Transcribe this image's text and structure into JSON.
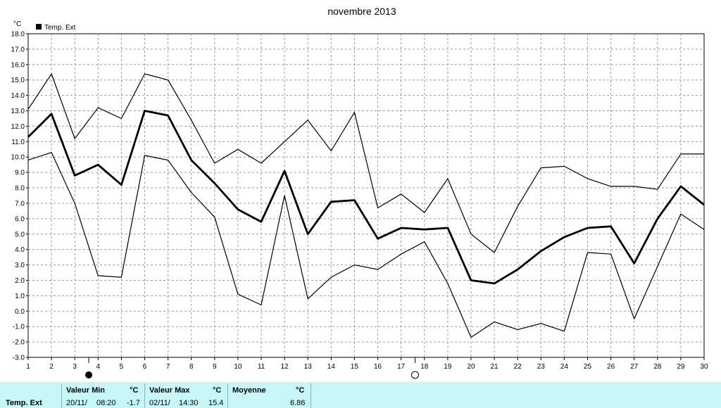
{
  "chart_data": {
    "type": "line",
    "title": "novembre 2013",
    "ylabel": "°C",
    "legend": {
      "label": "Temp. Ext",
      "position": "top-left",
      "color": "#000000"
    },
    "x": [
      1,
      2,
      3,
      4,
      5,
      6,
      7,
      8,
      9,
      10,
      11,
      12,
      13,
      14,
      15,
      16,
      17,
      18,
      19,
      20,
      21,
      22,
      23,
      24,
      25,
      26,
      27,
      28,
      29,
      30
    ],
    "xlim": [
      1,
      30
    ],
    "ylim": [
      -3.0,
      18.0
    ],
    "yticks": [
      "18.0",
      "17.0",
      "16.0",
      "15.0",
      "14.0",
      "13.0",
      "12.0",
      "11.0",
      "10.0",
      "9.0",
      "8.0",
      "7.0",
      "6.0",
      "5.0",
      "4.0",
      "3.0",
      "2.0",
      "1.0",
      "0.0",
      "-1.0",
      "-2.0",
      "-3.0"
    ],
    "grid": true,
    "series": [
      {
        "key": "max",
        "stroke_width": 1.2,
        "values": [
          13.1,
          15.4,
          11.2,
          13.2,
          12.5,
          15.4,
          15.0,
          12.4,
          9.6,
          10.5,
          9.6,
          11.0,
          12.4,
          10.4,
          12.9,
          6.7,
          7.6,
          6.4,
          8.6,
          5.0,
          3.8,
          6.8,
          9.3,
          9.4,
          8.6,
          8.1,
          8.1,
          7.9,
          10.2,
          10.2
        ]
      },
      {
        "key": "mean",
        "stroke_width": 2.8,
        "values": [
          11.3,
          12.8,
          8.8,
          9.5,
          8.2,
          13.0,
          12.7,
          9.8,
          8.3,
          6.6,
          5.8,
          9.1,
          5.0,
          7.1,
          7.2,
          4.7,
          5.4,
          5.3,
          5.4,
          2.0,
          1.8,
          2.7,
          3.9,
          4.8,
          5.4,
          5.5,
          3.1,
          6.0,
          8.1,
          6.9
        ]
      },
      {
        "key": "min",
        "stroke_width": 1.2,
        "values": [
          9.8,
          10.3,
          7.0,
          2.3,
          2.2,
          10.1,
          9.8,
          7.7,
          6.1,
          1.1,
          0.4,
          7.5,
          0.8,
          2.2,
          3.0,
          2.7,
          3.7,
          4.5,
          1.8,
          -1.7,
          -0.7,
          -1.2,
          -0.8,
          -1.3,
          3.8,
          3.7,
          -0.5,
          2.9,
          6.3,
          5.3
        ]
      }
    ],
    "annotations": [
      {
        "type": "moon-phase",
        "phase": "new-moon",
        "x": 3.6
      },
      {
        "type": "moon-phase",
        "phase": "full-moon",
        "x": 17.6
      }
    ]
  },
  "stats": {
    "row_label": "Temp. Ext",
    "min_header": "Valeur Min",
    "min_unit": "°C",
    "min_date": "20/11/",
    "min_time": "08:20",
    "min_value": "-1.7",
    "max_header": "Valeur Max",
    "max_unit": "°C",
    "max_date": "02/11/",
    "max_time": "14:30",
    "max_value": "15.4",
    "mean_header": "Moyenne",
    "mean_unit": "°C",
    "mean_value": "6.86"
  }
}
